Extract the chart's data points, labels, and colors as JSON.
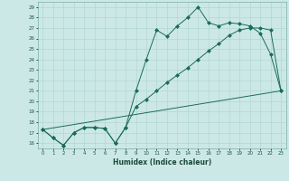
{
  "xlabel": "Humidex (Indice chaleur)",
  "background_color": "#cce8e6",
  "line_color": "#1a6b5a",
  "xlim": [
    -0.5,
    23.5
  ],
  "ylim": [
    15.5,
    29.5
  ],
  "xticks": [
    0,
    1,
    2,
    3,
    4,
    5,
    6,
    7,
    8,
    9,
    10,
    11,
    12,
    13,
    14,
    15,
    16,
    17,
    18,
    19,
    20,
    21,
    22,
    23
  ],
  "yticks": [
    16,
    17,
    18,
    19,
    20,
    21,
    22,
    23,
    24,
    25,
    26,
    27,
    28,
    29
  ],
  "curve1_x": [
    0,
    1,
    2,
    3,
    4,
    5,
    6,
    7,
    8,
    9,
    10,
    11,
    12,
    13,
    14,
    15,
    16,
    17,
    18,
    19,
    20,
    21,
    22,
    23
  ],
  "curve1_y": [
    17.3,
    16.5,
    15.8,
    17.0,
    17.5,
    17.5,
    17.4,
    16.0,
    17.5,
    21.0,
    24.0,
    26.8,
    26.2,
    27.2,
    28.0,
    29.0,
    27.5,
    27.2,
    27.5,
    27.4,
    27.2,
    26.5,
    24.5,
    21.0
  ],
  "curve2_x": [
    0,
    1,
    2,
    3,
    4,
    5,
    6,
    7,
    8,
    9,
    10,
    11,
    12,
    13,
    14,
    15,
    16,
    17,
    18,
    19,
    20,
    21,
    22,
    23
  ],
  "curve2_y": [
    17.3,
    16.5,
    15.8,
    17.0,
    17.5,
    17.5,
    17.4,
    16.0,
    17.5,
    19.5,
    20.2,
    21.0,
    21.8,
    22.5,
    23.2,
    24.0,
    24.8,
    25.5,
    26.3,
    26.8,
    27.0,
    27.0,
    26.8,
    21.0
  ],
  "curve3_x": [
    0,
    23
  ],
  "curve3_y": [
    17.3,
    21.0
  ],
  "grid_color": "#aad4d0",
  "markersize": 2.5
}
